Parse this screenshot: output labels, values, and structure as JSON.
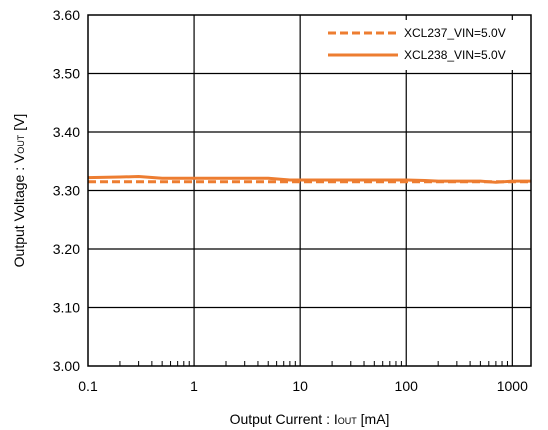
{
  "chart_data": {
    "type": "line",
    "title": "",
    "xlabel": {
      "main": "Output Current : I",
      "sub": "OUT",
      "tail": " [mA]"
    },
    "ylabel": {
      "main": "Output Voltage : V",
      "sub": "OUT",
      "tail": " [V]"
    },
    "xscale": "log",
    "xlim": [
      0.1,
      1500
    ],
    "ylim": [
      3.0,
      3.6
    ],
    "x_tick_labels": [
      "0.1",
      "1",
      "10",
      "100",
      "1000"
    ],
    "y_tick_labels": [
      "3.00",
      "3.10",
      "3.20",
      "3.30",
      "3.40",
      "3.50",
      "3.60"
    ],
    "grid": true,
    "legend_position": "top-right",
    "series": [
      {
        "name": "XCL237_VIN=5.0V",
        "style": "dashed",
        "color": "#ED7D31",
        "points": [
          [
            0.1,
            3.315
          ],
          [
            0.2,
            3.315
          ],
          [
            0.5,
            3.315
          ],
          [
            1,
            3.315
          ],
          [
            2,
            3.315
          ],
          [
            5,
            3.315
          ],
          [
            10,
            3.315
          ],
          [
            20,
            3.315
          ],
          [
            50,
            3.315
          ],
          [
            100,
            3.315
          ],
          [
            200,
            3.315
          ],
          [
            500,
            3.315
          ],
          [
            1000,
            3.315
          ],
          [
            1500,
            3.315
          ]
        ]
      },
      {
        "name": "XCL238_VIN=5.0V",
        "style": "solid",
        "color": "#ED7D31",
        "points": [
          [
            0.1,
            3.322
          ],
          [
            0.2,
            3.323
          ],
          [
            0.3,
            3.324
          ],
          [
            0.5,
            3.321
          ],
          [
            1,
            3.321
          ],
          [
            2,
            3.321
          ],
          [
            5,
            3.321
          ],
          [
            8,
            3.318
          ],
          [
            10,
            3.318
          ],
          [
            20,
            3.318
          ],
          [
            50,
            3.318
          ],
          [
            100,
            3.318
          ],
          [
            150,
            3.317
          ],
          [
            200,
            3.316
          ],
          [
            500,
            3.316
          ],
          [
            700,
            3.314
          ],
          [
            1000,
            3.316
          ],
          [
            1500,
            3.316
          ]
        ]
      }
    ]
  }
}
